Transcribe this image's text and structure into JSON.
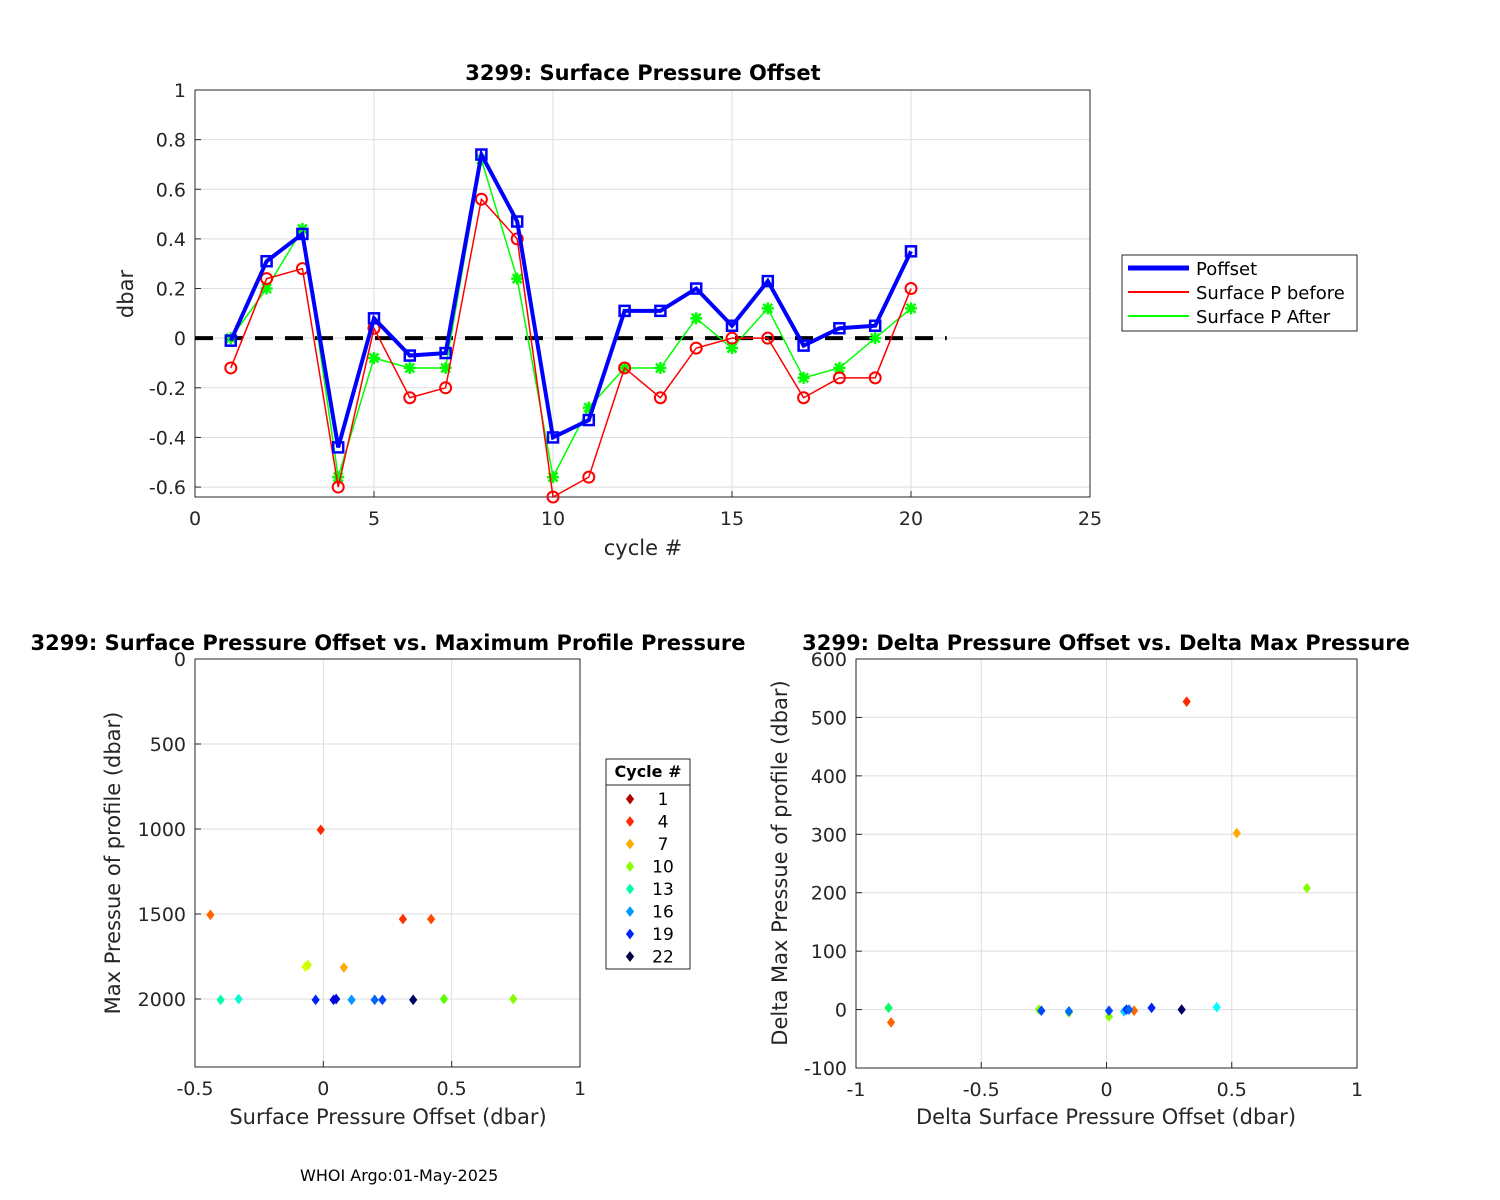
{
  "footer": "WHOI Argo:01-May-2025",
  "chart_data": [
    {
      "type": "line",
      "title": "3299: Surface Pressure Offset",
      "xlabel": "cycle #",
      "ylabel": "dbar",
      "xlim": [
        0,
        25
      ],
      "ylim": [
        -0.64,
        1
      ],
      "xticks": [
        0,
        5,
        10,
        15,
        20,
        25
      ],
      "xtick_labels": [
        "0",
        "5",
        "10",
        "15",
        "20",
        "25"
      ],
      "yticks": [
        -0.6,
        -0.4,
        -0.2,
        0,
        0.2,
        0.4,
        0.6,
        0.8,
        1
      ],
      "ytick_labels": [
        "-0.6",
        "-0.4",
        "-0.2",
        "0",
        "0.2",
        "0.4",
        "0.6",
        "0.8",
        "1"
      ],
      "grid": true,
      "legend_position": "outside-right",
      "x": [
        1,
        2,
        3,
        4,
        5,
        6,
        7,
        8,
        9,
        10,
        11,
        12,
        13,
        14,
        15,
        16,
        17,
        18,
        19,
        20
      ],
      "series": [
        {
          "name": "Poffset",
          "color": "#0000ff",
          "marker": "square",
          "values": [
            -0.01,
            0.31,
            0.42,
            -0.44,
            0.08,
            -0.07,
            -0.06,
            0.74,
            0.47,
            -0.4,
            -0.33,
            0.11,
            0.11,
            0.2,
            0.05,
            0.23,
            -0.03,
            0.04,
            0.05,
            0.35
          ]
        },
        {
          "name": "Surface P before",
          "color": "#ff0000",
          "marker": "circle",
          "values": [
            -0.12,
            0.24,
            0.28,
            -0.6,
            0.04,
            -0.24,
            -0.2,
            0.56,
            0.4,
            -0.64,
            -0.56,
            -0.12,
            -0.24,
            -0.04,
            0.0,
            0.0,
            -0.24,
            -0.16,
            -0.16,
            0.2
          ]
        },
        {
          "name": "Surface P After",
          "color": "#00ff00",
          "marker": "star",
          "values": [
            0.0,
            0.2,
            0.44,
            -0.56,
            -0.08,
            -0.12,
            -0.12,
            0.72,
            0.24,
            -0.56,
            -0.28,
            -0.12,
            -0.12,
            0.08,
            -0.04,
            0.12,
            -0.16,
            -0.12,
            0.0,
            0.12
          ]
        }
      ],
      "reference_line": {
        "y": 0,
        "x_range": [
          0,
          21
        ],
        "style": "dashed",
        "color": "#000000"
      }
    },
    {
      "type": "scatter",
      "title": "3299: Surface Pressure Offset vs. Maximum Profile Pressure",
      "xlabel": "Surface Pressure Offset (dbar)",
      "ylabel": "Max Pressue of profile (dbar)",
      "xlim": [
        -0.5,
        1
      ],
      "ylim": [
        0,
        2400
      ],
      "y_reversed": true,
      "xticks": [
        -0.5,
        0,
        0.5,
        1
      ],
      "xtick_labels": [
        "-0.5",
        "0",
        "0.5",
        "1"
      ],
      "yticks": [
        0,
        500,
        1000,
        1500,
        2000
      ],
      "ytick_labels": [
        "0",
        "500",
        "1000",
        "1500",
        "2000"
      ],
      "grid": true,
      "points": [
        {
          "x": -0.01,
          "y": 1005,
          "color": "#ff2a00"
        },
        {
          "x": 0.31,
          "y": 1530,
          "color": "#ff3300"
        },
        {
          "x": 0.42,
          "y": 1530,
          "color": "#ff4a00"
        },
        {
          "x": -0.44,
          "y": 1505,
          "color": "#ff6600"
        },
        {
          "x": 0.08,
          "y": 1815,
          "color": "#ffaa00"
        },
        {
          "x": -0.07,
          "y": 1810,
          "color": "#e6ff00"
        },
        {
          "x": -0.06,
          "y": 1800,
          "color": "#ccff00"
        },
        {
          "x": 0.74,
          "y": 2000,
          "color": "#88ff00"
        },
        {
          "x": 0.47,
          "y": 2000,
          "color": "#55ff00"
        },
        {
          "x": -0.4,
          "y": 2005,
          "color": "#00ffaa"
        },
        {
          "x": -0.33,
          "y": 2000,
          "color": "#00ffcc"
        },
        {
          "x": 0.11,
          "y": 2005,
          "color": "#0099ff"
        },
        {
          "x": 0.2,
          "y": 2005,
          "color": "#0066ff"
        },
        {
          "x": 0.23,
          "y": 2005,
          "color": "#0044ff"
        },
        {
          "x": -0.03,
          "y": 2005,
          "color": "#0022ff"
        },
        {
          "x": 0.04,
          "y": 2005,
          "color": "#0000ff"
        },
        {
          "x": 0.05,
          "y": 2000,
          "color": "#0000cc"
        },
        {
          "x": 0.35,
          "y": 2005,
          "color": "#000066"
        }
      ],
      "colorbar_legend": {
        "title": "Cycle #",
        "entries": [
          {
            "label": "1",
            "color": "#b00000"
          },
          {
            "label": "4",
            "color": "#ff2a00"
          },
          {
            "label": "7",
            "color": "#ffaa00"
          },
          {
            "label": "10",
            "color": "#88ff00"
          },
          {
            "label": "13",
            "color": "#00ffaa"
          },
          {
            "label": "16",
            "color": "#0099ff"
          },
          {
            "label": "19",
            "color": "#0022ff"
          },
          {
            "label": "22",
            "color": "#000044"
          }
        ]
      }
    },
    {
      "type": "scatter",
      "title": "3299: Delta Pressure Offset vs. Delta Max Pressure",
      "xlabel": "Delta Surface Pressure Offset (dbar)",
      "ylabel": "Delta Max Pressue of profile (dbar)",
      "xlim": [
        -1,
        1
      ],
      "ylim": [
        -100,
        600
      ],
      "xticks": [
        -1,
        -0.5,
        0,
        0.5,
        1
      ],
      "xtick_labels": [
        "-1",
        "-0.5",
        "0",
        "0.5",
        "1"
      ],
      "yticks": [
        -100,
        0,
        100,
        200,
        300,
        400,
        500,
        600
      ],
      "ytick_labels": [
        "-100",
        "0",
        "100",
        "200",
        "300",
        "400",
        "500",
        "600"
      ],
      "grid": true,
      "points": [
        {
          "x": 0.32,
          "y": 527,
          "color": "#ff2a00"
        },
        {
          "x": 0.52,
          "y": 302,
          "color": "#ffaa00"
        },
        {
          "x": 0.8,
          "y": 208,
          "color": "#88ff00"
        },
        {
          "x": -0.87,
          "y": 3,
          "color": "#00ff66"
        },
        {
          "x": -0.86,
          "y": -22,
          "color": "#ff6600"
        },
        {
          "x": -0.27,
          "y": 0,
          "color": "#88ff00"
        },
        {
          "x": -0.26,
          "y": -2,
          "color": "#0044ff"
        },
        {
          "x": -0.15,
          "y": -5,
          "color": "#88ff00"
        },
        {
          "x": -0.15,
          "y": -3,
          "color": "#0066ff"
        },
        {
          "x": 0.01,
          "y": -12,
          "color": "#88ff00"
        },
        {
          "x": 0.01,
          "y": -2,
          "color": "#0044ff"
        },
        {
          "x": 0.07,
          "y": -3,
          "color": "#00ccff"
        },
        {
          "x": 0.08,
          "y": 0,
          "color": "#0022ff"
        },
        {
          "x": 0.11,
          "y": -2,
          "color": "#ff6600"
        },
        {
          "x": 0.09,
          "y": 0,
          "color": "#0066ff"
        },
        {
          "x": 0.18,
          "y": 3,
          "color": "#0022ff"
        },
        {
          "x": 0.3,
          "y": 0,
          "color": "#000066"
        },
        {
          "x": 0.44,
          "y": 4,
          "color": "#00ffff"
        }
      ]
    }
  ]
}
